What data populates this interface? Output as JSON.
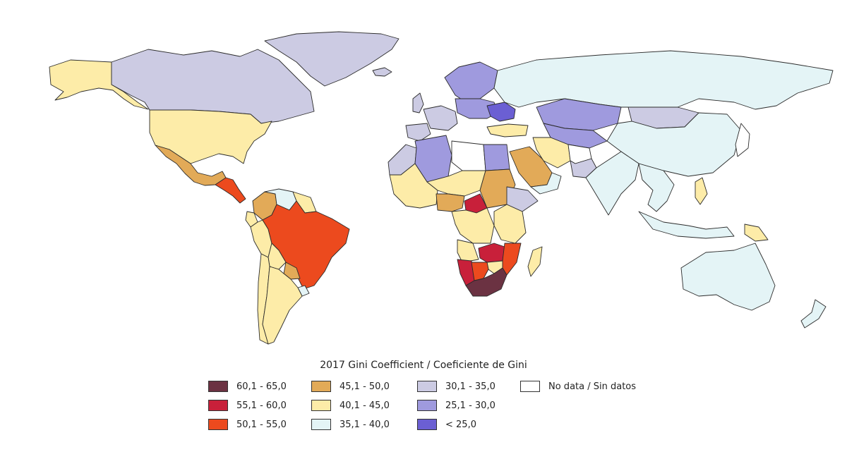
{
  "map": {
    "title": "2017 Gini Coefficient / Coeficiente de Gini",
    "legend": [
      {
        "label": "60,1 - 65,0",
        "color": "#6b3242"
      },
      {
        "label": "55,1 - 60,0",
        "color": "#c8203a"
      },
      {
        "label": "50,1 - 55,0",
        "color": "#ec4a1e"
      },
      {
        "label": "45,1 - 50,0",
        "color": "#e2aa58"
      },
      {
        "label": "40,1 - 45,0",
        "color": "#fdeca8"
      },
      {
        "label": "35,1 - 40,0",
        "color": "#e4f4f6"
      },
      {
        "label": "30,1 - 35,0",
        "color": "#cccbe3"
      },
      {
        "label": "25,1 - 30,0",
        "color": "#9f9ade"
      },
      {
        "label": "< 25,0",
        "color": "#6b5fd3"
      },
      {
        "label": "No data / Sin datos",
        "color": "#ffffff"
      }
    ],
    "regions": [
      {
        "name": "alaska",
        "color": "#fdeca8"
      },
      {
        "name": "canada",
        "color": "#cccbe3"
      },
      {
        "name": "greenland",
        "color": "#cccbe3"
      },
      {
        "name": "usa",
        "color": "#fdeca8"
      },
      {
        "name": "mexico",
        "color": "#e2aa58"
      },
      {
        "name": "central-america",
        "color": "#ec4a1e"
      },
      {
        "name": "colombia",
        "color": "#e2aa58"
      },
      {
        "name": "venezuela",
        "color": "#e4f4f6"
      },
      {
        "name": "guianas",
        "color": "#fdeca8"
      },
      {
        "name": "ecuador",
        "color": "#fdeca8"
      },
      {
        "name": "peru",
        "color": "#fdeca8"
      },
      {
        "name": "brazil",
        "color": "#ec4a1e"
      },
      {
        "name": "bolivia",
        "color": "#fdeca8"
      },
      {
        "name": "paraguay",
        "color": "#e2aa58"
      },
      {
        "name": "chile",
        "color": "#fdeca8"
      },
      {
        "name": "argentina",
        "color": "#fdeca8"
      },
      {
        "name": "uruguay",
        "color": "#e4f4f6"
      },
      {
        "name": "iceland",
        "color": "#cccbe3"
      },
      {
        "name": "uk",
        "color": "#cccbe3"
      },
      {
        "name": "iberia",
        "color": "#cccbe3"
      },
      {
        "name": "western-europe",
        "color": "#cccbe3"
      },
      {
        "name": "scandinavia",
        "color": "#9f9ade"
      },
      {
        "name": "central-europe",
        "color": "#9f9ade"
      },
      {
        "name": "eastern-europe",
        "color": "#6b5fd3"
      },
      {
        "name": "russia",
        "color": "#e4f4f6"
      },
      {
        "name": "turkey",
        "color": "#fdeca8"
      },
      {
        "name": "kazakhstan",
        "color": "#9f9ade"
      },
      {
        "name": "mongolia",
        "color": "#cccbe3"
      },
      {
        "name": "china",
        "color": "#e4f4f6"
      },
      {
        "name": "central-asia",
        "color": "#9f9ade"
      },
      {
        "name": "iran",
        "color": "#fdeca8"
      },
      {
        "name": "afghanistan",
        "color": "#ffffff"
      },
      {
        "name": "pakistan",
        "color": "#cccbe3"
      },
      {
        "name": "india",
        "color": "#e4f4f6"
      },
      {
        "name": "saudi-arabia",
        "color": "#e2aa58"
      },
      {
        "name": "yemen-oman",
        "color": "#e4f4f6"
      },
      {
        "name": "morocco",
        "color": "#cccbe3"
      },
      {
        "name": "algeria",
        "color": "#9f9ade"
      },
      {
        "name": "libya",
        "color": "#ffffff"
      },
      {
        "name": "egypt",
        "color": "#9f9ade"
      },
      {
        "name": "west-africa",
        "color": "#fdeca8"
      },
      {
        "name": "niger-chad",
        "color": "#fdeca8"
      },
      {
        "name": "sudan",
        "color": "#e2aa58"
      },
      {
        "name": "ethiopia",
        "color": "#cccbe3"
      },
      {
        "name": "nigeria",
        "color": "#e2aa58"
      },
      {
        "name": "car",
        "color": "#c8203a"
      },
      {
        "name": "congo",
        "color": "#fdeca8"
      },
      {
        "name": "east-africa",
        "color": "#fdeca8"
      },
      {
        "name": "angola",
        "color": "#fdeca8"
      },
      {
        "name": "zambia",
        "color": "#c8203a"
      },
      {
        "name": "mozambique",
        "color": "#ec4a1e"
      },
      {
        "name": "namibia",
        "color": "#c8203a"
      },
      {
        "name": "botswana",
        "color": "#ec4a1e"
      },
      {
        "name": "zimbabwe",
        "color": "#fdeca8"
      },
      {
        "name": "south-africa",
        "color": "#6b3242"
      },
      {
        "name": "madagascar",
        "color": "#fdeca8"
      },
      {
        "name": "southeast-asia",
        "color": "#e4f4f6"
      },
      {
        "name": "philippines",
        "color": "#fdeca8"
      },
      {
        "name": "indonesia",
        "color": "#e4f4f6"
      },
      {
        "name": "papua",
        "color": "#fdeca8"
      },
      {
        "name": "japan",
        "color": "#ffffff"
      },
      {
        "name": "australia",
        "color": "#e4f4f6"
      },
      {
        "name": "new-zealand",
        "color": "#e4f4f6"
      }
    ]
  }
}
